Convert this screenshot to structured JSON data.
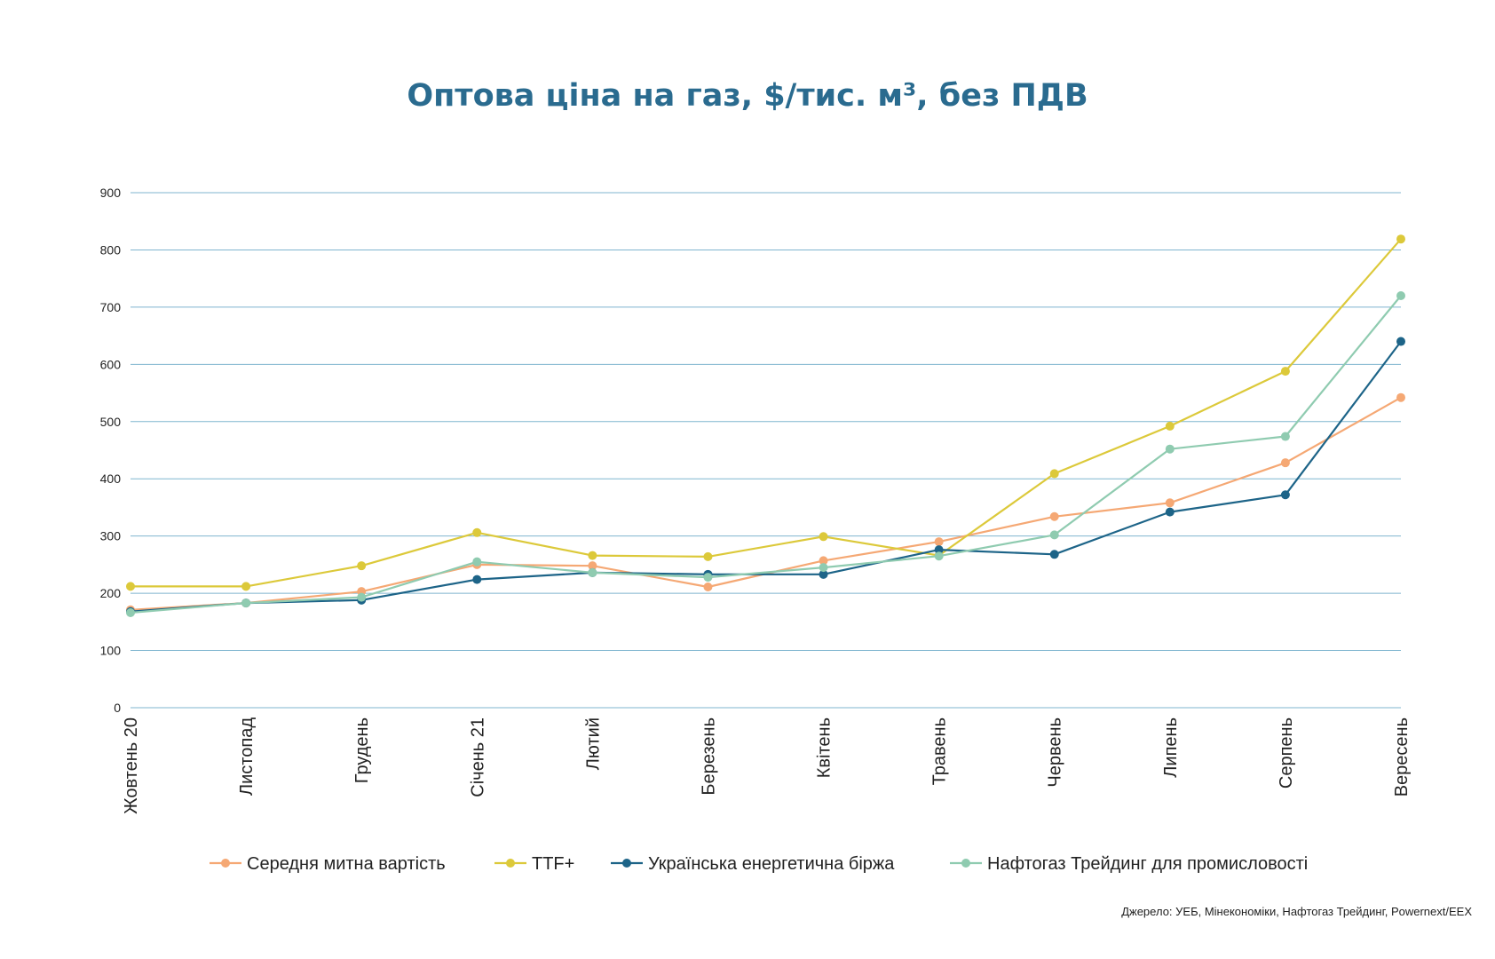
{
  "chart_data": {
    "type": "line",
    "title": "Оптова ціна на газ, $/тис. м³, без ПДВ",
    "xlabel": "",
    "ylabel": "",
    "categories": [
      "Жовтень 20",
      "Листопад",
      "Грудень",
      "Січень 21",
      "Лютий",
      "Березень",
      "Квітень",
      "Травень",
      "Червень",
      "Липень",
      "Серпень",
      "Вересень"
    ],
    "ylim": [
      0,
      900
    ],
    "yticks": [
      0,
      100,
      200,
      300,
      400,
      500,
      600,
      700,
      800,
      900
    ],
    "grid": true,
    "legend_position": "bottom",
    "series": [
      {
        "name": "Середня митна вартість",
        "color": "#f5a874",
        "values": [
          171,
          183,
          203,
          250,
          248,
          211,
          257,
          290,
          334,
          358,
          428,
          542
        ]
      },
      {
        "name": "TTF+",
        "color": "#dcc93a",
        "values": [
          212,
          212,
          248,
          306,
          266,
          264,
          299,
          266,
          409,
          492,
          588,
          819
        ]
      },
      {
        "name": "Українська енергетична біржа",
        "color": "#1d6488",
        "values": [
          168,
          183,
          188,
          224,
          236,
          233,
          233,
          276,
          268,
          342,
          372,
          640
        ]
      },
      {
        "name": "Нафтогаз Трейдинг для промисловості",
        "color": "#8fcbb0",
        "values": [
          166,
          183,
          193,
          255,
          236,
          228,
          245,
          265,
          302,
          452,
          474,
          720
        ]
      }
    ]
  },
  "source_note": "Джерело: УЕБ, Мінекономіки, Нафтогаз Трейдинг, Powernext/EEX",
  "colors": {
    "title": "#2a6b8f",
    "grid": "#7fb5cf"
  }
}
